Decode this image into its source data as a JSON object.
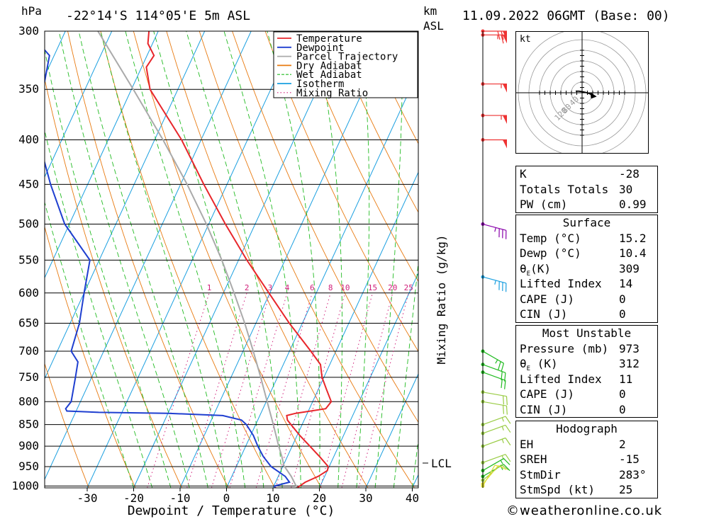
{
  "header": {
    "pressure_unit": "hPa",
    "location": "-22°14'S 114°05'E 5m ASL",
    "km_label": "km",
    "asl_label": "ASL",
    "datetime": "11.09.2022 06GMT (Base: 00)"
  },
  "legend": [
    {
      "label": "Temperature",
      "color": "#e8262b",
      "style": "solid"
    },
    {
      "label": "Dewpoint",
      "color": "#1f3fd0",
      "style": "solid"
    },
    {
      "label": "Parcel Trajectory",
      "color": "#aaaaaa",
      "style": "solid"
    },
    {
      "label": "Dry Adiabat",
      "color": "#e87a10",
      "style": "solid"
    },
    {
      "label": "Wet Adiabat",
      "color": "#22bb22",
      "style": "dashed"
    },
    {
      "label": "Isotherm",
      "color": "#1a9fe0",
      "style": "solid"
    },
    {
      "label": "Mixing Ratio",
      "color": "#d0207a",
      "style": "dotted"
    }
  ],
  "chart_data": {
    "type": "line",
    "title": "Skew-T log-P diagram",
    "xlabel": "Dewpoint / Temperature (°C)",
    "ylabel": "hPa",
    "mixing_ratio_axis_label": "Mixing Ratio (g/kg)",
    "x_ticks": [
      -30,
      -20,
      -10,
      0,
      10,
      20,
      30,
      40
    ],
    "y_ticks": [
      300,
      350,
      400,
      450,
      500,
      550,
      600,
      650,
      700,
      750,
      800,
      850,
      900,
      950,
      1000
    ],
    "mixing_ratio_labels": [
      "1",
      "2",
      "3",
      "4",
      "6",
      "8",
      "10",
      "15",
      "20",
      "25"
    ],
    "mixing_ratio_values": [
      1,
      2,
      3,
      4,
      6,
      8,
      10,
      15,
      20,
      25
    ],
    "lcl_label": "LCL",
    "lcl_pressure": 948,
    "series": [
      {
        "name": "Temperature",
        "pressure": [
          1005,
          1000,
          990,
          975,
          960,
          950,
          925,
          900,
          875,
          850,
          840,
          830,
          825,
          815,
          800,
          775,
          750,
          725,
          700,
          650,
          600,
          550,
          500,
          450,
          400,
          350,
          330,
          320,
          310,
          300
        ],
        "values": [
          15.2,
          15.6,
          16.4,
          18.6,
          20.0,
          19.8,
          16.9,
          13.8,
          10.6,
          7.6,
          6.4,
          5.8,
          7.5,
          13.5,
          14.0,
          11.8,
          9.6,
          8.0,
          4.6,
          -2.8,
          -10.2,
          -18.2,
          -26.4,
          -35.0,
          -44.2,
          -56.0,
          -59.0,
          -58.5,
          -61.0,
          -62.0
        ]
      },
      {
        "name": "Dewpoint",
        "pressure": [
          1005,
          1000,
          990,
          975,
          950,
          925,
          900,
          875,
          850,
          840,
          830,
          825,
          823,
          820,
          815,
          800,
          750,
          720,
          700,
          650,
          600,
          550,
          500,
          450,
          400,
          350,
          320,
          300
        ],
        "values": [
          10.4,
          10.2,
          13.0,
          11.5,
          7.5,
          4.8,
          2.6,
          0.6,
          -2.0,
          -3.5,
          -8.0,
          -20.0,
          -35.0,
          -42.0,
          -42.5,
          -42.0,
          -43.5,
          -44.5,
          -47.0,
          -48.0,
          -50.0,
          -52.0,
          -61.0,
          -68.0,
          -75.0,
          -79.0,
          -81.0,
          -88.0
        ]
      },
      {
        "name": "Parcel Trajectory",
        "pressure": [
          1005,
          990,
          975,
          948,
          925,
          900,
          850,
          800,
          750,
          700,
          650,
          600,
          550,
          500,
          450,
          400,
          350,
          300
        ],
        "values": [
          15.2,
          14.0,
          12.8,
          10.2,
          8.8,
          7.1,
          3.8,
          0.2,
          -3.6,
          -7.8,
          -12.4,
          -17.7,
          -23.6,
          -30.5,
          -38.6,
          -48.2,
          -59.6,
          -73.0
        ]
      }
    ]
  },
  "wind_barbs": [
    {
      "pressure": 300,
      "direction_deg": 270,
      "speed_kt": 70,
      "color": "#ee3333"
    },
    {
      "pressure": 303,
      "direction_deg": 270,
      "speed_kt": 65,
      "color": "#ee3333"
    },
    {
      "pressure": 345,
      "direction_deg": 270,
      "speed_kt": 55,
      "color": "#ee3333"
    },
    {
      "pressure": 375,
      "direction_deg": 270,
      "speed_kt": 55,
      "color": "#ee3333"
    },
    {
      "pressure": 400,
      "direction_deg": 270,
      "speed_kt": 50,
      "color": "#ee3333"
    },
    {
      "pressure": 500,
      "direction_deg": 285,
      "speed_kt": 35,
      "color": "#8800aa"
    },
    {
      "pressure": 575,
      "direction_deg": 285,
      "speed_kt": 35,
      "color": "#1a9fe0"
    },
    {
      "pressure": 700,
      "direction_deg": 300,
      "speed_kt": 25,
      "color": "#22bb22"
    },
    {
      "pressure": 725,
      "direction_deg": 290,
      "speed_kt": 20,
      "color": "#22bb22"
    },
    {
      "pressure": 740,
      "direction_deg": 290,
      "speed_kt": 20,
      "color": "#22bb22"
    },
    {
      "pressure": 780,
      "direction_deg": 280,
      "speed_kt": 20,
      "color": "#99cc44"
    },
    {
      "pressure": 800,
      "direction_deg": 280,
      "speed_kt": 20,
      "color": "#99cc44"
    },
    {
      "pressure": 850,
      "direction_deg": 250,
      "speed_kt": 15,
      "color": "#99cc44"
    },
    {
      "pressure": 870,
      "direction_deg": 250,
      "speed_kt": 15,
      "color": "#99cc44"
    },
    {
      "pressure": 900,
      "direction_deg": 250,
      "speed_kt": 15,
      "color": "#99cc44"
    },
    {
      "pressure": 940,
      "direction_deg": 250,
      "speed_kt": 15,
      "color": "#99cc44"
    },
    {
      "pressure": 960,
      "direction_deg": 240,
      "speed_kt": 15,
      "color": "#22bb22"
    },
    {
      "pressure": 975,
      "direction_deg": 240,
      "speed_kt": 15,
      "color": "#22bb22"
    },
    {
      "pressure": 985,
      "direction_deg": 230,
      "speed_kt": 10,
      "color": "#99cc44"
    },
    {
      "pressure": 995,
      "direction_deg": 220,
      "speed_kt": 10,
      "color": "#dddd33"
    },
    {
      "pressure": 1000,
      "direction_deg": 210,
      "speed_kt": 10,
      "color": "#dddd33"
    }
  ],
  "hodograph": {
    "unit_label": "kt",
    "ring_values": [
      20,
      40,
      60,
      80,
      100,
      120
    ],
    "ring_labels": [
      "40",
      "80",
      "120"
    ],
    "trace_u": [
      -8,
      -4,
      2,
      6,
      9,
      11,
      13
    ],
    "trace_v": [
      2,
      2,
      1,
      0,
      -1,
      -2,
      -3
    ]
  },
  "indices": {
    "k_label": "K",
    "k_value": "-28",
    "tt_label": "Totals Totals",
    "tt_value": "30",
    "pw_label": "PW (cm)",
    "pw_value": "0.99"
  },
  "surface": {
    "title": "Surface",
    "temp_label": "Temp (°C)",
    "temp_value": "15.2",
    "dewp_label": "Dewp (°C)",
    "dewp_value": "10.4",
    "theta_e_label_sub": "E",
    "theta_e_unit": "(K)",
    "theta_e_value": "309",
    "li_label": "Lifted Index",
    "li_value": "14",
    "cape_label": "CAPE (J)",
    "cape_value": "0",
    "cin_label": "CIN (J)",
    "cin_value": "0"
  },
  "most_unstable": {
    "title": "Most Unstable",
    "pressure_label": "Pressure (mb)",
    "pressure_value": "973",
    "theta_e_label_sub": "E",
    "theta_e_unit": "(K)",
    "theta_e_value": "312",
    "li_label": "Lifted Index",
    "li_value": "11",
    "cape_label": "CAPE (J)",
    "cape_value": "0",
    "cin_label": "CIN (J)",
    "cin_value": "0"
  },
  "hodograph_stats": {
    "title": "Hodograph",
    "eh_label": "EH",
    "eh_value": "2",
    "sreh_label": "SREH",
    "sreh_value": "-15",
    "stmdir_label": "StmDir",
    "stmdir_value": "283°",
    "stmspd_label": "StmSpd (kt)",
    "stmspd_value": "25"
  },
  "footer": {
    "copyright": "©weatheronline.co.uk"
  }
}
